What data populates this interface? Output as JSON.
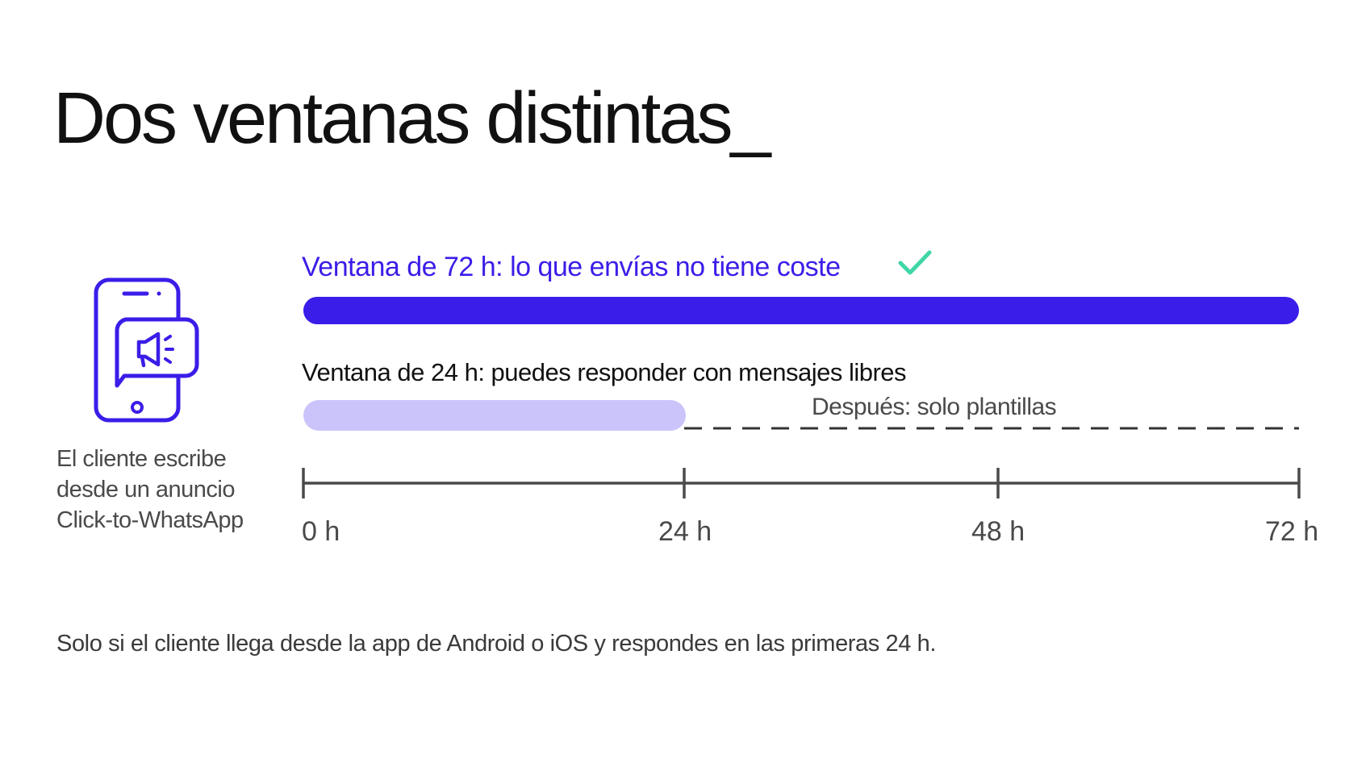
{
  "title": "Dos ventanas distintas_",
  "icon": {
    "name": "phone-megaphone-icon",
    "color": "#3a1de8"
  },
  "caption": [
    "El cliente escribe",
    "desde un anuncio",
    "Click-to-WhatsApp"
  ],
  "window72": {
    "label": "Ventana de 72 h: lo que envías no tiene coste",
    "check_icon": "check-icon",
    "check_color": "#3fd6a8",
    "bar_color": "#3a1de8",
    "hours": 72
  },
  "window24": {
    "label": "Ventana de 24 h: puedes responder con mensajes libres",
    "bar_color": "#cbc4fb",
    "hours": 24,
    "after_label": "Después: solo plantillas"
  },
  "axis": {
    "ticks": [
      "0 h",
      "24 h",
      "48 h",
      "72 h"
    ],
    "max_hours": 72
  },
  "footnote": "Solo si el cliente llega desde la app de Android o iOS y respondes en las primeras 24 h."
}
